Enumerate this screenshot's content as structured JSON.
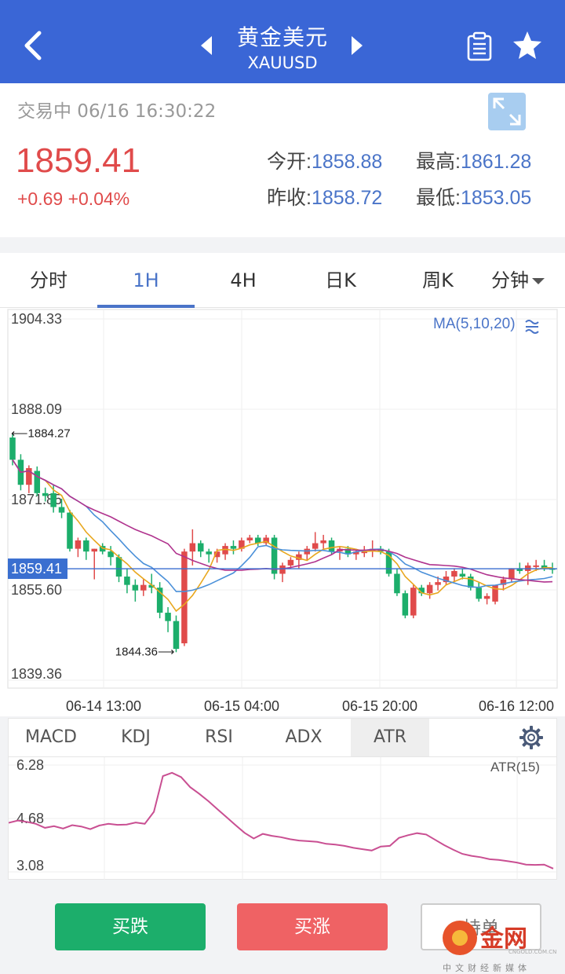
{
  "header": {
    "title": "黄金美元",
    "subtitle": "XAUUSD"
  },
  "quote": {
    "status": "交易中 06/16 16:30:22",
    "price": "1859.41",
    "change": "+0.69 +0.04%",
    "open_label": "今开:",
    "open_value": "1858.88",
    "high_label": "最高:",
    "high_value": "1861.28",
    "prev_close_label": "昨收:",
    "prev_close_value": "1858.72",
    "low_label": "最低:",
    "low_value": "1853.05"
  },
  "tabs": [
    {
      "label": "分时"
    },
    {
      "label": "1H"
    },
    {
      "label": "4H"
    },
    {
      "label": "日K"
    },
    {
      "label": "周K"
    },
    {
      "label": "分钟"
    }
  ],
  "chart_data": [
    {
      "type": "candlestick",
      "ma_label": "MA(5,10,20)",
      "ylim": [
        1839.36,
        1904.33
      ],
      "y_ticks": [
        "1904.33",
        "1888.09",
        "1871.85",
        "1855.60",
        "1839.36"
      ],
      "x_ticks": [
        "06-14 13:00",
        "06-15 04:00",
        "06-15 20:00",
        "06-16 12:00"
      ],
      "current_price": "1859.41",
      "max_marker": "1884.27",
      "min_marker": "1844.36",
      "candles": [
        [
          1883.0,
          1883.8,
          1878.0,
          1879.0
        ],
        [
          1879.0,
          1880.0,
          1873.5,
          1874.5
        ],
        [
          1874.5,
          1878.0,
          1873.0,
          1877.5
        ],
        [
          1877.0,
          1877.8,
          1872.5,
          1873.0
        ],
        [
          1873.0,
          1874.0,
          1871.5,
          1872.5
        ],
        [
          1873.0,
          1874.5,
          1869.5,
          1870.5
        ],
        [
          1870.5,
          1872.0,
          1868.5,
          1869.5
        ],
        [
          1869.5,
          1870.0,
          1862.5,
          1863.0
        ],
        [
          1863.0,
          1865.0,
          1861.5,
          1864.5
        ],
        [
          1864.5,
          1865.0,
          1861.0,
          1862.5
        ],
        [
          1862.5,
          1863.0,
          1857.5,
          1863.0
        ],
        [
          1863.5,
          1864.0,
          1862.0,
          1862.5
        ],
        [
          1862.5,
          1863.5,
          1860.0,
          1861.5
        ],
        [
          1861.5,
          1862.0,
          1857.0,
          1858.0
        ],
        [
          1858.0,
          1859.5,
          1855.0,
          1856.5
        ],
        [
          1856.5,
          1857.5,
          1853.5,
          1855.5
        ],
        [
          1855.5,
          1857.5,
          1854.5,
          1856.5
        ],
        [
          1856.5,
          1858.5,
          1855.0,
          1856.0
        ],
        [
          1856.0,
          1857.0,
          1850.5,
          1851.5
        ],
        [
          1851.5,
          1852.5,
          1848.0,
          1850.0
        ],
        [
          1850.0,
          1851.0,
          1844.4,
          1845.0
        ],
        [
          1846.0,
          1863.0,
          1845.5,
          1862.5
        ],
        [
          1862.5,
          1866.5,
          1860.0,
          1864.0
        ],
        [
          1864.0,
          1864.5,
          1861.5,
          1862.5
        ],
        [
          1862.5,
          1863.0,
          1860.5,
          1862.0
        ],
        [
          1861.5,
          1863.0,
          1860.5,
          1862.5
        ],
        [
          1862.0,
          1864.0,
          1861.0,
          1863.5
        ],
        [
          1863.5,
          1864.5,
          1862.0,
          1863.0
        ],
        [
          1863.0,
          1865.0,
          1862.5,
          1864.5
        ],
        [
          1864.5,
          1865.5,
          1864.0,
          1865.0
        ],
        [
          1865.0,
          1865.5,
          1863.5,
          1864.0
        ],
        [
          1864.0,
          1865.5,
          1863.5,
          1865.0
        ],
        [
          1865.0,
          1865.5,
          1857.5,
          1858.5
        ],
        [
          1858.5,
          1860.5,
          1857.0,
          1860.0
        ],
        [
          1860.0,
          1861.5,
          1859.5,
          1861.0
        ],
        [
          1861.0,
          1862.5,
          1859.5,
          1862.0
        ],
        [
          1862.0,
          1863.5,
          1861.0,
          1863.0
        ],
        [
          1863.0,
          1866.0,
          1862.5,
          1864.0
        ],
        [
          1864.0,
          1865.5,
          1863.0,
          1864.5
        ],
        [
          1864.5,
          1865.0,
          1862.0,
          1862.5
        ],
        [
          1862.5,
          1863.5,
          1861.0,
          1863.0
        ],
        [
          1863.0,
          1863.5,
          1861.5,
          1862.0
        ],
        [
          1862.0,
          1863.0,
          1861.0,
          1862.5
        ],
        [
          1862.5,
          1863.5,
          1861.5,
          1862.5
        ],
        [
          1862.5,
          1864.5,
          1861.5,
          1863.0
        ],
        [
          1863.0,
          1863.5,
          1862.0,
          1862.5
        ],
        [
          1862.5,
          1863.0,
          1858.0,
          1858.5
        ],
        [
          1858.5,
          1859.5,
          1854.5,
          1855.0
        ],
        [
          1855.0,
          1855.5,
          1850.5,
          1851.0
        ],
        [
          1851.0,
          1856.5,
          1850.5,
          1856.0
        ],
        [
          1856.0,
          1856.5,
          1854.5,
          1855.0
        ],
        [
          1855.0,
          1857.0,
          1854.0,
          1856.5
        ],
        [
          1856.5,
          1858.0,
          1855.5,
          1857.0
        ],
        [
          1857.0,
          1859.0,
          1856.5,
          1858.0
        ],
        [
          1858.0,
          1859.5,
          1857.0,
          1859.0
        ],
        [
          1858.5,
          1859.5,
          1857.5,
          1858.0
        ],
        [
          1858.0,
          1858.5,
          1855.5,
          1856.0
        ],
        [
          1856.0,
          1857.0,
          1853.5,
          1854.0
        ],
        [
          1854.0,
          1855.0,
          1853.0,
          1854.5
        ],
        [
          1853.5,
          1856.5,
          1853.0,
          1856.5
        ],
        [
          1856.5,
          1858.0,
          1855.5,
          1857.5
        ],
        [
          1857.5,
          1859.5,
          1857.0,
          1859.5
        ],
        [
          1859.5,
          1860.5,
          1858.5,
          1859.0
        ],
        [
          1859.0,
          1860.5,
          1856.5,
          1860.0
        ],
        [
          1860.0,
          1861.0,
          1859.0,
          1860.0
        ],
        [
          1860.0,
          1861.0,
          1859.0,
          1859.5
        ],
        [
          1859.5,
          1860.5,
          1858.5,
          1859.4
        ]
      ]
    },
    {
      "type": "line",
      "tabs": [
        "MACD",
        "KDJ",
        "RSI",
        "ADX",
        "ATR"
      ],
      "active_tab": "ATR",
      "label": "ATR(15)",
      "ylim": [
        3.08,
        6.28
      ],
      "y_ticks": [
        "6.28",
        "4.68",
        "3.08"
      ],
      "values": [
        4.55,
        4.62,
        4.58,
        4.52,
        4.4,
        4.45,
        4.38,
        4.48,
        4.44,
        4.36,
        4.47,
        4.52,
        4.49,
        4.5,
        4.56,
        4.52,
        4.88,
        5.95,
        6.05,
        5.92,
        5.62,
        5.42,
        5.2,
        4.96,
        4.72,
        4.48,
        4.25,
        4.08,
        4.22,
        4.16,
        4.12,
        4.06,
        4.02,
        4.0,
        3.98,
        3.92,
        3.9,
        3.86,
        3.8,
        3.76,
        3.72,
        3.84,
        3.86,
        4.1,
        4.18,
        4.24,
        4.2,
        4.04,
        3.88,
        3.74,
        3.62,
        3.56,
        3.52,
        3.46,
        3.44,
        3.4,
        3.36,
        3.3,
        3.29,
        3.3,
        3.18
      ]
    }
  ],
  "actions": {
    "sell": "买跌",
    "buy": "买涨",
    "third": "持单"
  },
  "watermark": {
    "name": "金网",
    "sub": "中文财经新媒体",
    "domain": "CNGOLD.COM.CN"
  },
  "colors": {
    "header": "#3a66d6",
    "up": "#e04b4b",
    "down": "#1cae6b",
    "accent": "#4a74c8"
  }
}
